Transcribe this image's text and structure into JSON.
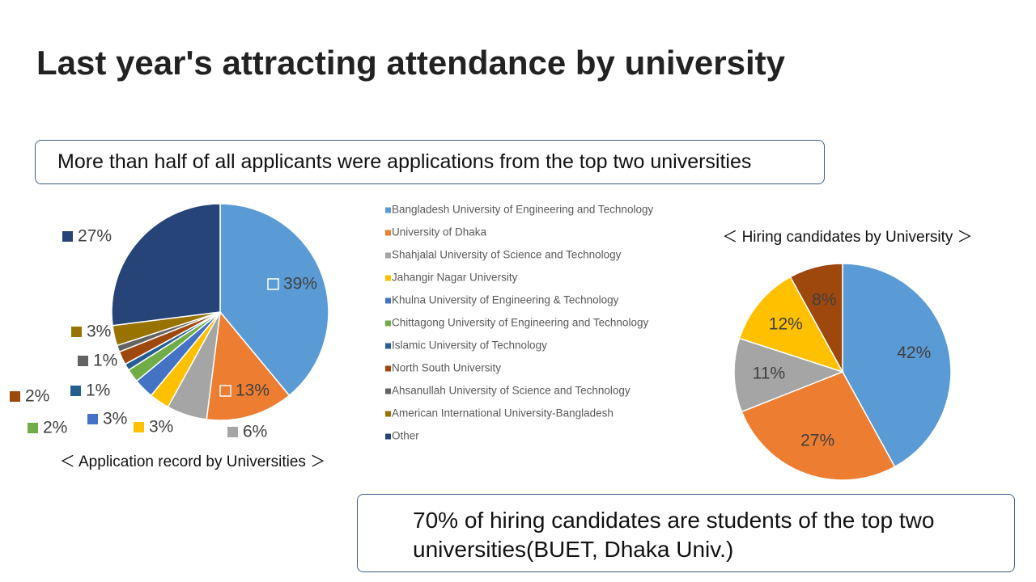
{
  "title": "Last year's attracting attendance by university",
  "callout_top": "More than half of all applicants were applications from the top two universities",
  "callout_bottom": [
    "70% of hiring candidates are students of the top two",
    "universities(BUET, Dhaka Univ.)"
  ],
  "chart_data": [
    {
      "type": "pie",
      "title": "＜ Application record by Universities ＞",
      "categories": [
        "Bangladesh University of Engineering and Technology",
        "University of Dhaka",
        "Shahjalal University of Science and Technology",
        "Jahangir Nagar University",
        "Khulna University of Engineering & Technology",
        "Chittagong University of Engineering and Technology",
        "Islamic University of Technology",
        "North South University",
        "Ahsanullah University of Science and Technology",
        "American International University-Bangladesh",
        "Other"
      ],
      "values": [
        39,
        13,
        6,
        3,
        3,
        2,
        1,
        2,
        1,
        3,
        27
      ],
      "value_labels": [
        "39%",
        "13%",
        "6%",
        "3%",
        "3%",
        "2%",
        "1%",
        "2%",
        "1%",
        "3%",
        "27%"
      ],
      "colors": [
        "#5b9bd5",
        "#ed7d31",
        "#a5a5a5",
        "#ffc000",
        "#4472c4",
        "#70ad47",
        "#255e91",
        "#9e480e",
        "#636363",
        "#997300",
        "#264478"
      ],
      "legend": "right"
    },
    {
      "type": "pie",
      "title": "＜  Hiring candidates by University  ＞",
      "values": [
        42,
        27,
        11,
        12,
        8
      ],
      "value_labels": [
        "42%",
        "27%",
        "11%",
        "12%",
        "8%"
      ],
      "colors": [
        "#5b9bd5",
        "#ed7d31",
        "#a5a5a5",
        "#ffc000",
        "#9e480e"
      ]
    }
  ]
}
